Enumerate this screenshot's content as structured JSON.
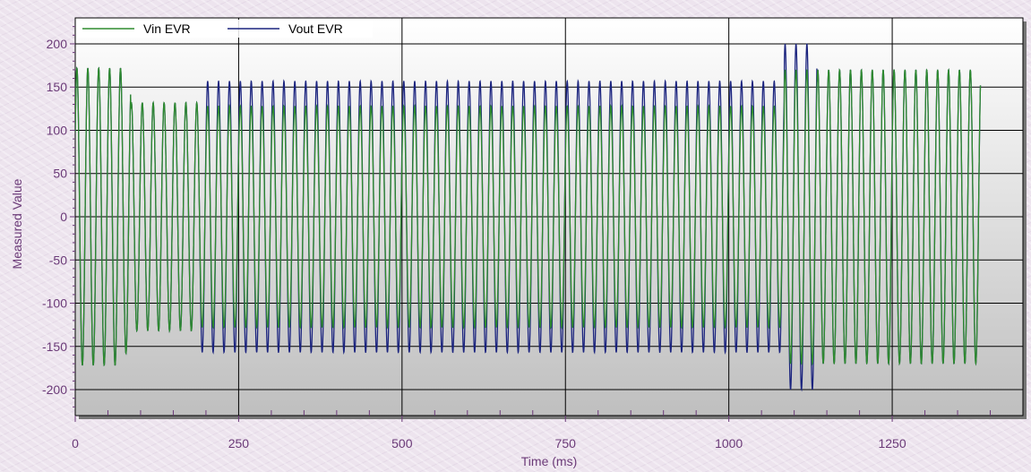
{
  "chart_data": {
    "type": "line",
    "title": "",
    "xlabel": "Time (ms)",
    "ylabel": "Measured Value",
    "xlim": [
      0,
      1450
    ],
    "ylim": [
      -230,
      230
    ],
    "x_ticks": [
      0,
      250,
      500,
      750,
      1000,
      1250
    ],
    "y_ticks": [
      200,
      150,
      100,
      50,
      0,
      -50,
      -100,
      -150,
      -200
    ],
    "grid": true,
    "legend_position": "top-left",
    "period_ms": 16.67,
    "series": [
      {
        "name": "Vin EVR",
        "color": "#2e8b2e",
        "x_end": 1385,
        "amplitude_segments": [
          {
            "x0": 0,
            "x1": 75,
            "amp": 172
          },
          {
            "x0": 75,
            "x1": 85,
            "amp": 158
          },
          {
            "x0": 85,
            "x1": 190,
            "amp": 132
          },
          {
            "x0": 190,
            "x1": 1085,
            "amp": 128
          },
          {
            "x0": 1085,
            "x1": 1385,
            "amp": 170
          }
        ]
      },
      {
        "name": "Vout EVR",
        "color": "#1a237e",
        "x_end": 1385,
        "amplitude_segments": [
          {
            "x0": 0,
            "x1": 75,
            "amp": 172
          },
          {
            "x0": 75,
            "x1": 85,
            "amp": 158
          },
          {
            "x0": 85,
            "x1": 190,
            "amp": 132
          },
          {
            "x0": 190,
            "x1": 1085,
            "amp": 157
          },
          {
            "x0": 1085,
            "x1": 1135,
            "amp": 200
          },
          {
            "x0": 1135,
            "x1": 1385,
            "amp": 170
          }
        ]
      }
    ]
  }
}
